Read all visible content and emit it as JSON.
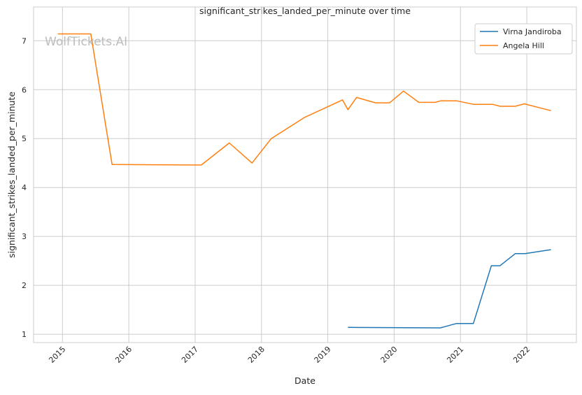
{
  "chart_data": {
    "type": "line",
    "title": "significant_strikes_landed_per_minute over time",
    "xlabel": "Date",
    "ylabel": "significant_strikes_landed_per_minute",
    "xlim": [
      "2014-07-26",
      "2022-10-01"
    ],
    "ylim": [
      0.83,
      7.69
    ],
    "x_ticks": [
      "2015",
      "2016",
      "2017",
      "2018",
      "2019",
      "2020",
      "2021",
      "2022"
    ],
    "y_ticks": [
      1,
      2,
      3,
      4,
      5,
      6,
      7
    ],
    "grid": true,
    "legend_position": "top-right",
    "watermark": "WolfTickets.AI",
    "series": [
      {
        "name": "Virna Jandiroba",
        "color": "#1f77b4",
        "points": [
          [
            "2019-04-22",
            1.14
          ],
          [
            "2020-09-12",
            1.13
          ],
          [
            "2020-12-10",
            1.22
          ],
          [
            "2021-03-13",
            1.22
          ],
          [
            "2021-06-20",
            2.4
          ],
          [
            "2021-08-07",
            2.4
          ],
          [
            "2021-10-30",
            2.65
          ],
          [
            "2021-12-23",
            2.65
          ],
          [
            "2022-05-14",
            2.73
          ]
        ]
      },
      {
        "name": "Angela Hill",
        "color": "#ff7f0e",
        "points": [
          [
            "2014-12-06",
            7.14
          ],
          [
            "2015-06-06",
            7.14
          ],
          [
            "2015-10-01",
            4.47
          ],
          [
            "2017-02-04",
            4.46
          ],
          [
            "2017-07-08",
            4.91
          ],
          [
            "2017-11-10",
            4.5
          ],
          [
            "2018-02-24",
            5.0
          ],
          [
            "2018-08-25",
            5.43
          ],
          [
            "2019-03-23",
            5.79
          ],
          [
            "2019-04-22",
            5.59
          ],
          [
            "2019-06-08",
            5.84
          ],
          [
            "2019-09-21",
            5.73
          ],
          [
            "2019-12-07",
            5.73
          ],
          [
            "2020-02-22",
            5.97
          ],
          [
            "2020-05-16",
            5.74
          ],
          [
            "2020-08-15",
            5.74
          ],
          [
            "2020-09-12",
            5.77
          ],
          [
            "2020-12-12",
            5.77
          ],
          [
            "2021-03-13",
            5.7
          ],
          [
            "2021-06-26",
            5.7
          ],
          [
            "2021-08-07",
            5.66
          ],
          [
            "2021-10-30",
            5.66
          ],
          [
            "2021-12-18",
            5.71
          ],
          [
            "2022-05-14",
            5.57
          ]
        ]
      }
    ]
  }
}
